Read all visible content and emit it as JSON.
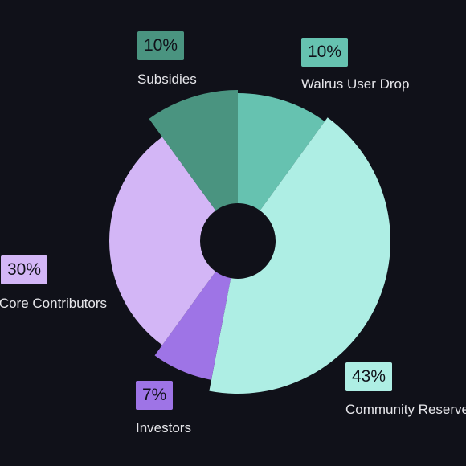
{
  "chart_data": {
    "type": "pie",
    "style": "donut",
    "slices": [
      {
        "label": "Walrus User Drop",
        "value": 10,
        "display": "10%",
        "color": "#66c2b0"
      },
      {
        "label": "Community Reserve",
        "value": 43,
        "display": "43%",
        "color": "#aeeee4"
      },
      {
        "label": "Investors",
        "value": 7,
        "display": "7%",
        "color": "#9e74e6"
      },
      {
        "label": "Core Contributors",
        "value": 30,
        "display": "30%",
        "color": "#d3b6f6"
      },
      {
        "label": "Subsidies",
        "value": 10,
        "display": "10%",
        "color": "#4a9480"
      }
    ],
    "background": "#101119",
    "label_color": "#e6e6ea"
  }
}
